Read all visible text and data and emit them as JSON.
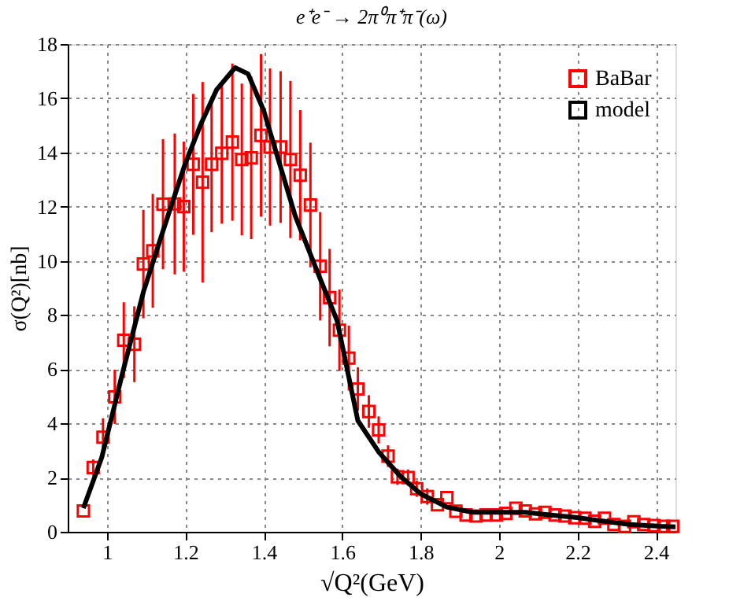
{
  "chart_data": {
    "type": "scatter",
    "title": "e⁺e⁻ → 2π⁰π⁺π⁻(ω)",
    "xlabel": "√Q²(GeV)",
    "ylabel": "σ(Q²)[nb]",
    "xlim": [
      0.9,
      2.45
    ],
    "xticks": [
      1,
      1.2,
      1.4,
      1.6,
      1.8,
      2,
      2.2,
      2.4
    ],
    "ylim": [
      0,
      18
    ],
    "yticks": [
      0,
      2,
      4,
      6,
      8,
      10,
      12,
      14,
      16,
      18
    ],
    "grid": true,
    "legend": "top right",
    "series": [
      {
        "name": "BaBar",
        "marker": "square",
        "color": "#ff0000",
        "x": [
          0.94,
          0.965,
          0.99,
          1.02,
          1.043,
          1.07,
          1.093,
          1.117,
          1.143,
          1.173,
          1.196,
          1.22,
          1.244,
          1.267,
          1.293,
          1.32,
          1.344,
          1.368,
          1.393,
          1.416,
          1.443,
          1.468,
          1.493,
          1.519,
          1.544,
          1.568,
          1.593,
          1.617,
          1.64,
          1.668,
          1.693,
          1.717,
          1.741,
          1.768,
          1.79,
          1.817,
          1.843,
          1.867,
          1.89,
          1.916,
          1.941,
          1.967,
          1.993,
          2.017,
          2.043,
          2.067,
          2.093,
          2.117,
          2.143,
          2.168,
          2.193,
          2.219,
          2.244,
          2.269,
          2.293,
          2.32,
          2.344,
          2.369,
          2.395,
          2.42,
          2.443
        ],
        "values": [
          0.77,
          2.37,
          3.49,
          4.98,
          7.07,
          6.92,
          9.88,
          10.37,
          12.09,
          12.1,
          12.0,
          13.56,
          12.9,
          13.56,
          13.97,
          14.38,
          13.74,
          13.8,
          14.63,
          14.2,
          14.2,
          13.74,
          13.16,
          12.06,
          9.8,
          8.64,
          7.44,
          6.41,
          5.27,
          4.44,
          3.76,
          2.79,
          2.03,
          2.0,
          1.59,
          1.3,
          1.0,
          1.26,
          0.76,
          0.62,
          0.58,
          0.62,
          0.62,
          0.68,
          0.87,
          0.77,
          0.66,
          0.72,
          0.62,
          0.58,
          0.52,
          0.5,
          0.39,
          0.5,
          0.27,
          0.2,
          0.37,
          0.27,
          0.23,
          0.2,
          0.2
        ],
        "errors": [
          null,
          0.3,
          0.7,
          1.0,
          1.4,
          1.4,
          2.0,
          2.1,
          2.4,
          2.6,
          2.4,
          2.6,
          3.7,
          2.5,
          2.6,
          2.9,
          2.8,
          3.0,
          3.0,
          2.9,
          2.8,
          2.9,
          2.4,
          2.3,
          2.0,
          1.8,
          1.5,
          1.2,
          0.8,
          0.6,
          0.5,
          0.4,
          0.3,
          0.3,
          0.3,
          0.3,
          null,
          null,
          null,
          null,
          null,
          null,
          null,
          null,
          null,
          null,
          null,
          null,
          null,
          null,
          null,
          null,
          null,
          null,
          null,
          null,
          null,
          null,
          null,
          null,
          null
        ]
      },
      {
        "name": "model",
        "type": "line",
        "marker": "none",
        "line_style": "solid",
        "color": "#000000",
        "x": [
          0.94,
          0.987,
          1.04,
          1.093,
          1.147,
          1.2,
          1.24,
          1.28,
          1.327,
          1.36,
          1.4,
          1.44,
          1.48,
          1.533,
          1.587,
          1.64,
          1.693,
          1.747,
          1.8,
          1.867,
          1.933,
          1.993,
          2.067,
          2.133,
          2.2,
          2.267,
          2.333,
          2.413,
          2.45
        ],
        "values": [
          0.87,
          2.75,
          5.87,
          8.85,
          11.28,
          13.6,
          15.06,
          16.32,
          17.13,
          16.9,
          15.54,
          13.6,
          11.67,
          9.73,
          7.79,
          4.1,
          2.95,
          2.07,
          1.4,
          0.91,
          0.72,
          0.72,
          0.72,
          0.62,
          0.52,
          0.39,
          0.27,
          0.2,
          0.18
        ]
      }
    ]
  }
}
